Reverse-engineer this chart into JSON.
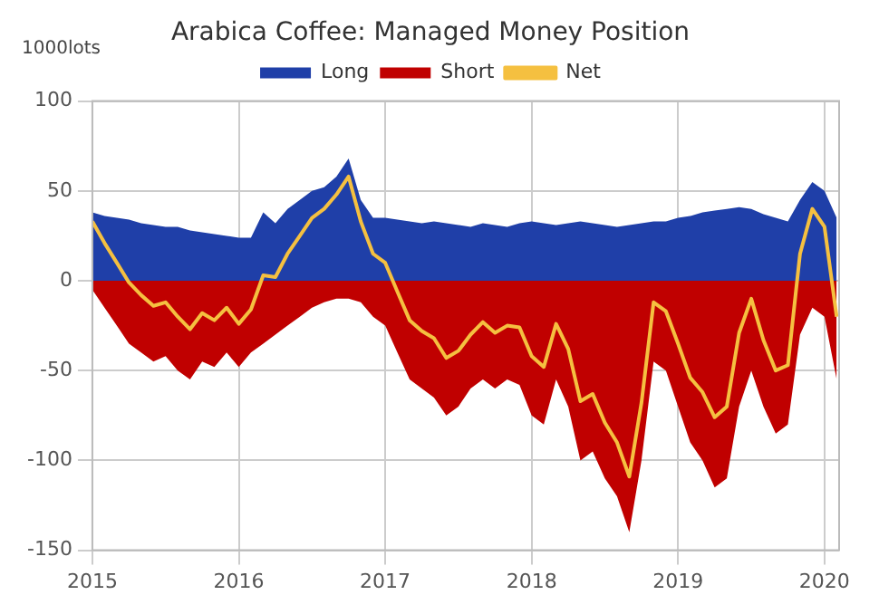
{
  "chart_data": {
    "type": "area",
    "title": "Arabica Coffee: Managed Money Position",
    "ylabel": "1000lots",
    "x": [
      2015,
      2015.083,
      2015.167,
      2015.25,
      2015.333,
      2015.417,
      2015.5,
      2015.583,
      2015.667,
      2015.75,
      2015.833,
      2015.917,
      2016,
      2016.083,
      2016.167,
      2016.25,
      2016.333,
      2016.417,
      2016.5,
      2016.583,
      2016.667,
      2016.75,
      2016.833,
      2016.917,
      2017,
      2017.083,
      2017.167,
      2017.25,
      2017.333,
      2017.417,
      2017.5,
      2017.583,
      2017.667,
      2017.75,
      2017.833,
      2017.917,
      2018,
      2018.083,
      2018.167,
      2018.25,
      2018.333,
      2018.417,
      2018.5,
      2018.583,
      2018.667,
      2018.75,
      2018.833,
      2018.917,
      2019,
      2019.083,
      2019.167,
      2019.25,
      2019.333,
      2019.417,
      2019.5,
      2019.583,
      2019.667,
      2019.75,
      2019.833,
      2019.917,
      2020,
      2020.083
    ],
    "series": [
      {
        "name": "Long",
        "type": "area",
        "color": "#1f3fa8",
        "values": [
          38,
          36,
          35,
          34,
          32,
          31,
          30,
          30,
          28,
          27,
          26,
          25,
          24,
          24,
          38,
          32,
          40,
          45,
          50,
          52,
          58,
          68,
          45,
          35,
          35,
          34,
          33,
          32,
          33,
          32,
          31,
          30,
          32,
          31,
          30,
          32,
          33,
          32,
          31,
          32,
          33,
          32,
          31,
          30,
          31,
          32,
          33,
          33,
          35,
          36,
          38,
          39,
          40,
          41,
          40,
          37,
          35,
          33,
          45,
          55,
          50,
          35
        ]
      },
      {
        "name": "Short",
        "type": "area",
        "color": "#c00000",
        "values": [
          -5,
          -15,
          -25,
          -35,
          -40,
          -45,
          -42,
          -50,
          -55,
          -45,
          -48,
          -40,
          -48,
          -40,
          -35,
          -30,
          -25,
          -20,
          -15,
          -12,
          -10,
          -10,
          -12,
          -20,
          -25,
          -40,
          -55,
          -60,
          -65,
          -75,
          -70,
          -60,
          -55,
          -60,
          -55,
          -58,
          -75,
          -80,
          -55,
          -70,
          -100,
          -95,
          -110,
          -120,
          -140,
          -100,
          -45,
          -50,
          -70,
          -90,
          -100,
          -115,
          -110,
          -70,
          -50,
          -70,
          -85,
          -80,
          -30,
          -15,
          -20,
          -55
        ]
      },
      {
        "name": "Net",
        "type": "line",
        "color": "#f5c040",
        "values": [
          33,
          21,
          10,
          -1,
          -8,
          -14,
          -12,
          -20,
          -27,
          -18,
          -22,
          -15,
          -24,
          -16,
          3,
          2,
          15,
          25,
          35,
          40,
          48,
          58,
          33,
          15,
          10,
          -6,
          -22,
          -28,
          -32,
          -43,
          -39,
          -30,
          -23,
          -29,
          -25,
          -26,
          -42,
          -48,
          -24,
          -38,
          -67,
          -63,
          -79,
          -90,
          -109,
          -68,
          -12,
          -17,
          -35,
          -54,
          -62,
          -76,
          -70,
          -29,
          -10,
          -33,
          -50,
          -47,
          15,
          40,
          30,
          -20
        ]
      }
    ],
    "xlim": [
      2015,
      2020.1
    ],
    "xticks": [
      2015,
      2016,
      2017,
      2018,
      2019,
      2020
    ],
    "ylim": [
      -150,
      100
    ],
    "yticks": [
      -150,
      -100,
      -50,
      0,
      50,
      100
    ],
    "grid": true,
    "legend": "top",
    "marker": "none"
  }
}
